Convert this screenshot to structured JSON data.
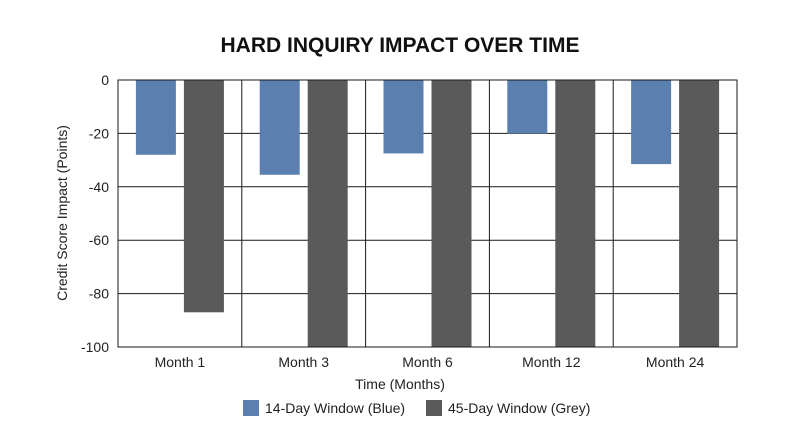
{
  "chart_data": {
    "type": "bar",
    "title": "HARD INQUIRY IMPACT OVER TIME",
    "xlabel": "Time (Months)",
    "ylabel": "Credit Score Impact (Points)",
    "categories": [
      "Month 1",
      "Month 3",
      "Month 6",
      "Month 12",
      "Month 24"
    ],
    "series": [
      {
        "name": "14-Day Window (Blue)",
        "color": "#5b7fae",
        "values": [
          -28,
          -35.5,
          -27.5,
          -20,
          -31.5
        ]
      },
      {
        "name": "45-Day Window (Grey)",
        "color": "#5a5a5a",
        "values": [
          -87,
          -100,
          -100,
          -100,
          -100
        ]
      }
    ],
    "ylim": [
      -100,
      0
    ],
    "yticks": [
      0,
      -20,
      -40,
      -60,
      -80,
      -100
    ],
    "grid": true,
    "legend": "bottom"
  }
}
